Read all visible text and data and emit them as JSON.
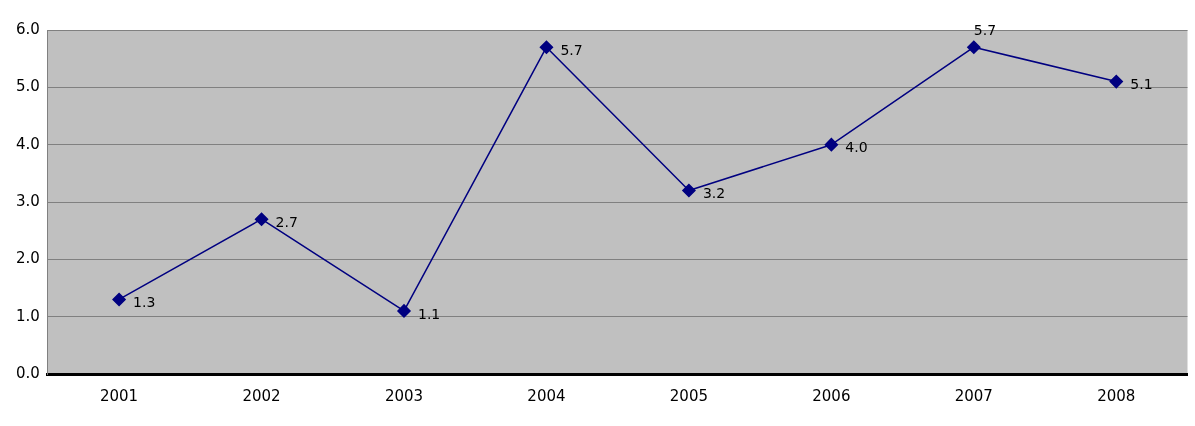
{
  "chart_data": {
    "type": "line",
    "categories": [
      "2001",
      "2002",
      "2003",
      "2004",
      "2005",
      "2006",
      "2007",
      "2008"
    ],
    "series": [
      {
        "color": "#000080",
        "values": [
          1.3,
          2.7,
          1.1,
          5.7,
          3.2,
          4.0,
          5.7,
          5.1
        ],
        "value_labels": [
          "1.3",
          "2.7",
          "1.1",
          "5.7",
          "3.2",
          "4.0",
          "5.7",
          "5.1"
        ]
      }
    ],
    "ylim": [
      0,
      6
    ],
    "yticks": [
      {
        "value": 0,
        "label": "0.0"
      },
      {
        "value": 1,
        "label": "1.0"
      },
      {
        "value": 2,
        "label": "2.0"
      },
      {
        "value": 3,
        "label": "3.0"
      },
      {
        "value": 4,
        "label": "4.0"
      },
      {
        "value": 5,
        "label": "5.0"
      },
      {
        "value": 6,
        "label": "6.0"
      }
    ],
    "grid": "y",
    "legend": false,
    "marker": "diamond",
    "line_style": "solid"
  }
}
